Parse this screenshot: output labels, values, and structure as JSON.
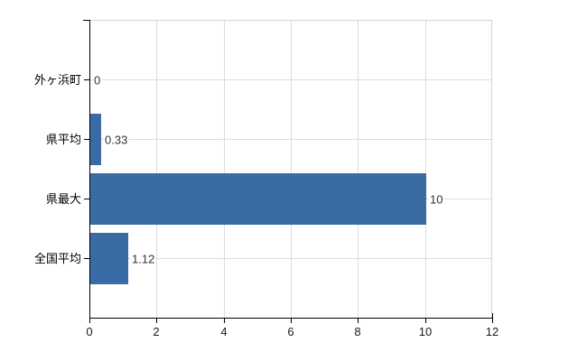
{
  "chart_data": {
    "type": "bar",
    "orientation": "horizontal",
    "title": "",
    "xlabel": "",
    "ylabel": "",
    "categories": [
      "外ヶ浜町",
      "県平均",
      "県最大",
      "全国平均"
    ],
    "values": [
      0,
      0.33,
      10,
      1.12
    ],
    "value_labels": [
      "0",
      "0.33",
      "10",
      "1.12"
    ],
    "x_ticks": [
      0,
      2,
      4,
      6,
      8,
      10,
      12
    ],
    "x_tick_labels": [
      "0",
      "2",
      "4",
      "6",
      "8",
      "10",
      "12"
    ],
    "xlim": [
      0,
      12
    ],
    "grid": true,
    "legend": false,
    "colors": {
      "bar": "#3b6ba5",
      "grid": "#dcdcdc",
      "frame": "#d4d4d4",
      "axis": "#000000",
      "category_label": "#000000",
      "tick_label": "#1a1a1a",
      "value_label": "#333333",
      "background": "#ffffff"
    }
  }
}
